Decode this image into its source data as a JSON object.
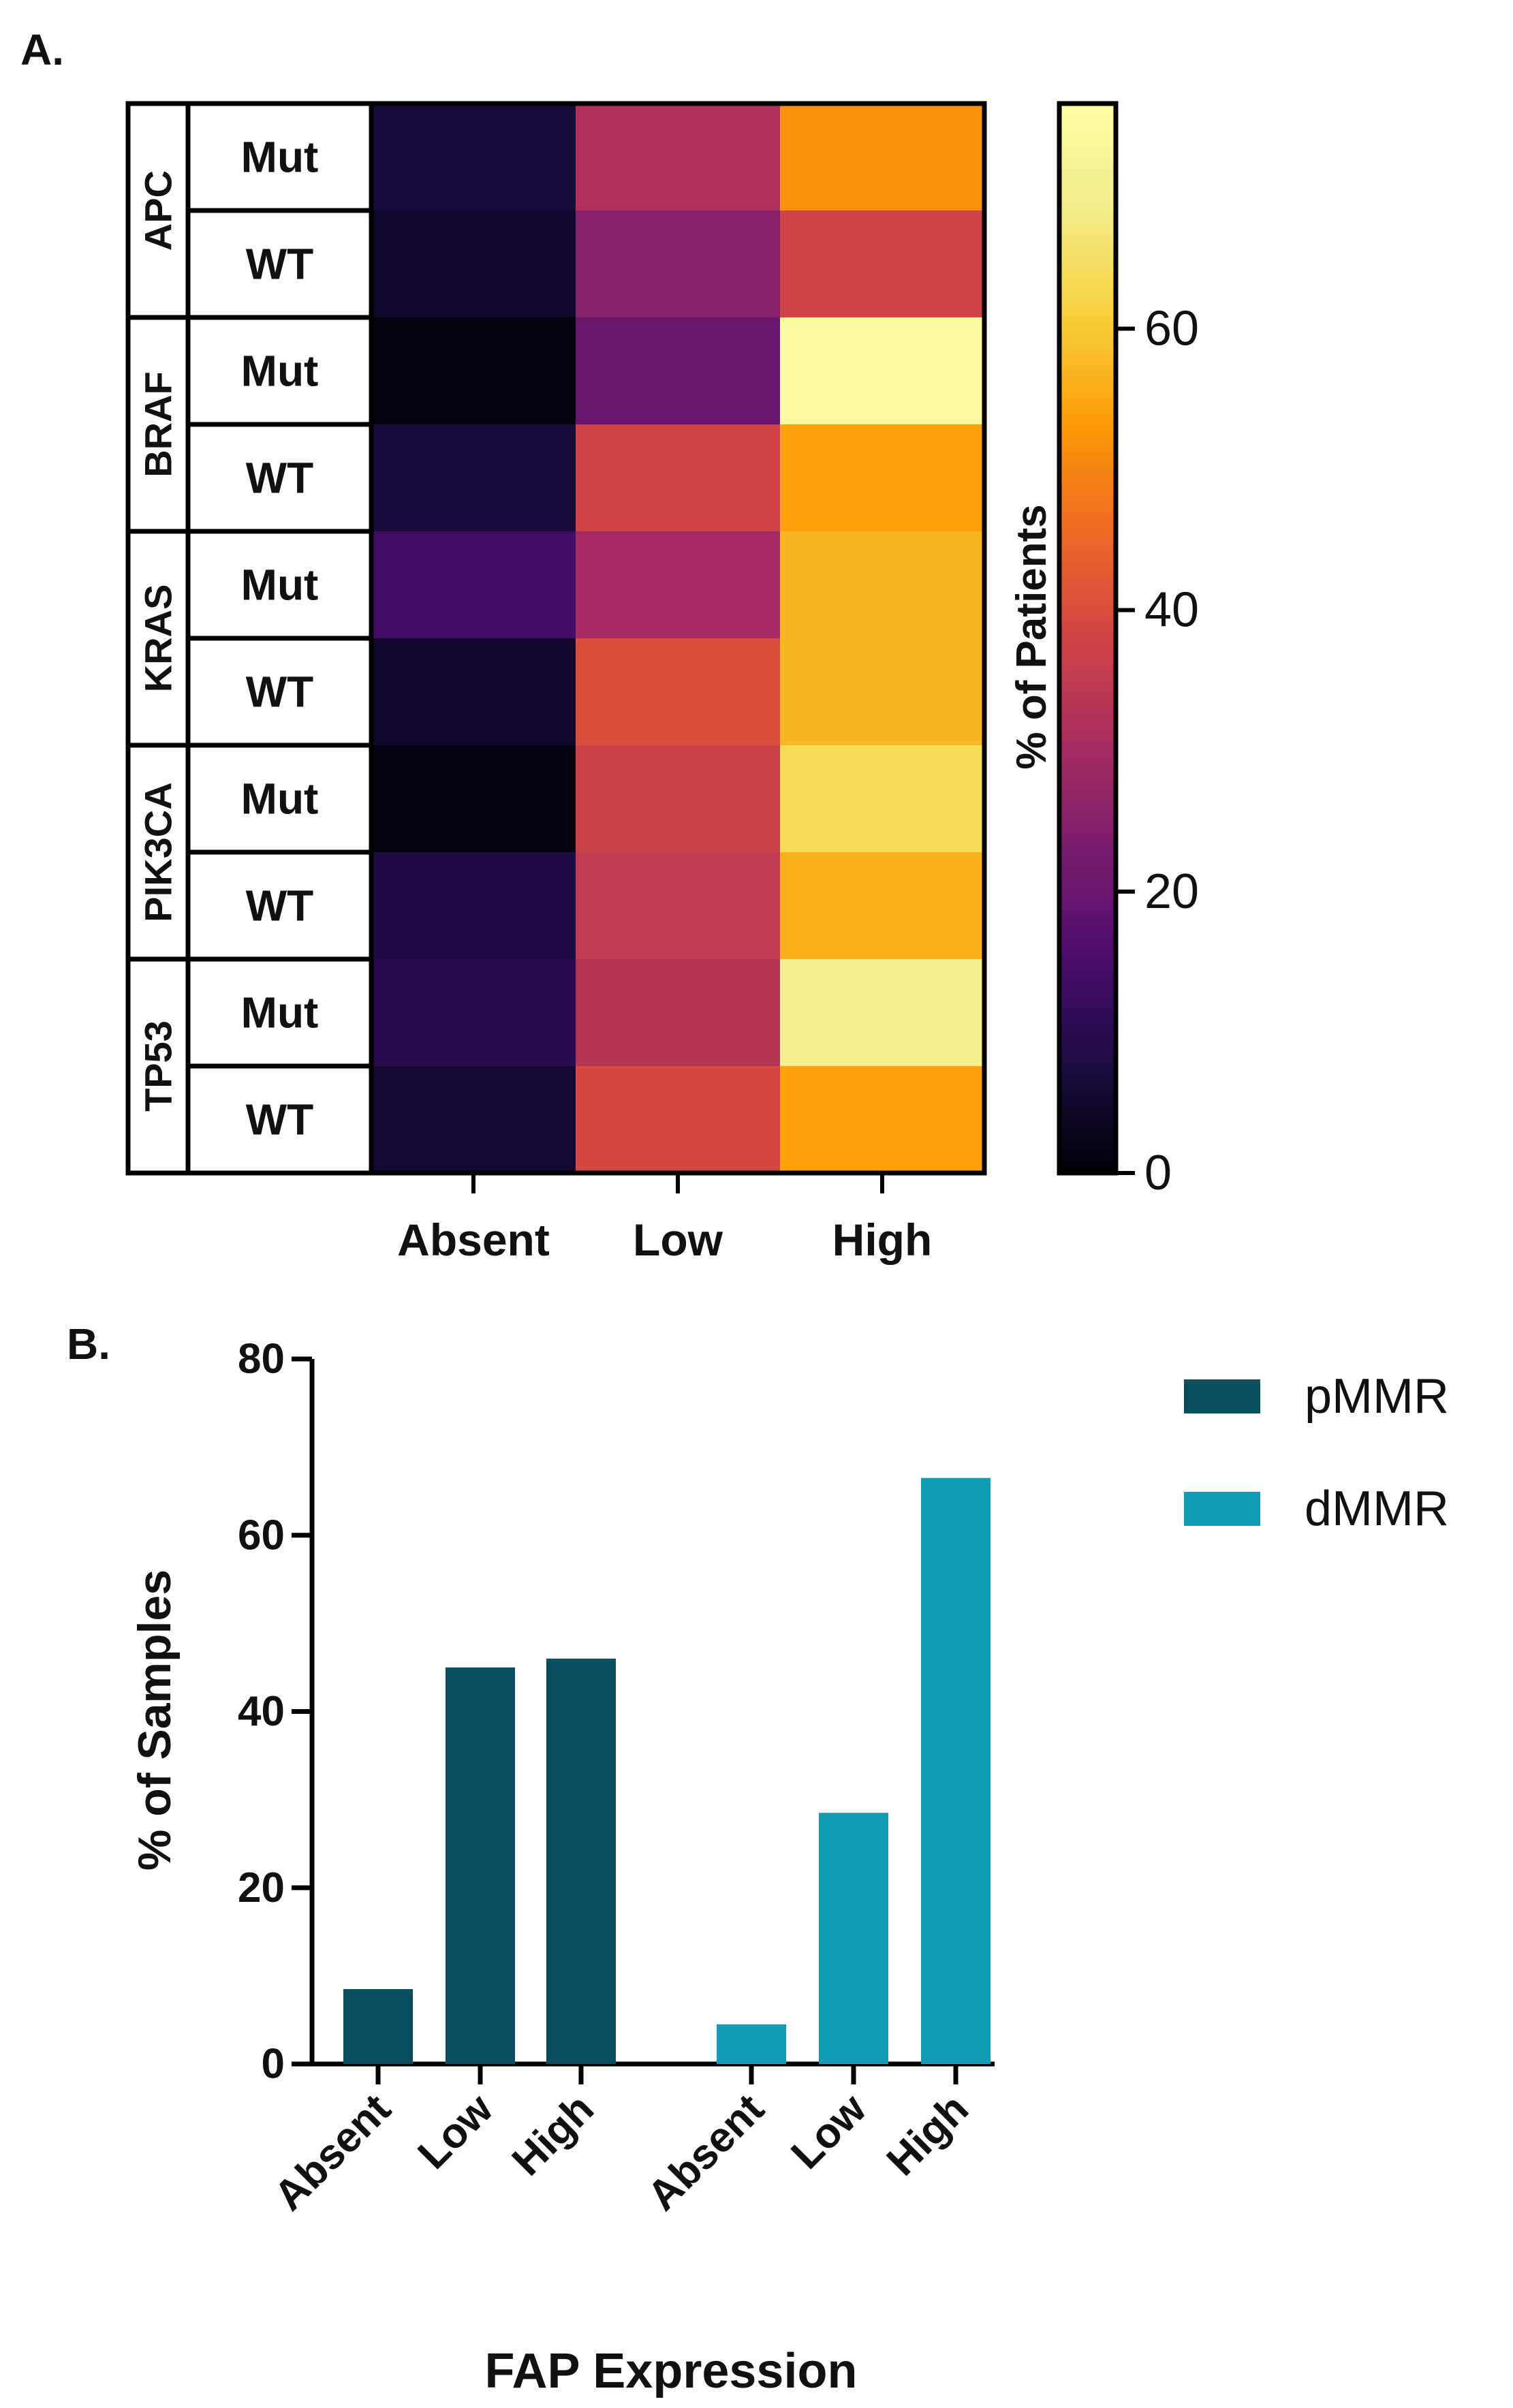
{
  "chart_data": [
    {
      "type": "heatmap",
      "panel_label": "A.",
      "genes": [
        "APC",
        "BRAF",
        "KRAS",
        "PIK3CA",
        "TP53"
      ],
      "status_labels": [
        "Mut",
        "WT"
      ],
      "rows": [
        {
          "gene": "APC",
          "status": "Mut"
        },
        {
          "gene": "APC",
          "status": "WT"
        },
        {
          "gene": "BRAF",
          "status": "Mut"
        },
        {
          "gene": "BRAF",
          "status": "WT"
        },
        {
          "gene": "KRAS",
          "status": "Mut"
        },
        {
          "gene": "KRAS",
          "status": "WT"
        },
        {
          "gene": "PIK3CA",
          "status": "Mut"
        },
        {
          "gene": "PIK3CA",
          "status": "WT"
        },
        {
          "gene": "TP53",
          "status": "Mut"
        },
        {
          "gene": "TP53",
          "status": "WT"
        }
      ],
      "columns": [
        "Absent",
        "Low",
        "High"
      ],
      "values": [
        [
          7,
          32,
          52
        ],
        [
          5,
          25,
          38
        ],
        [
          1,
          20,
          75
        ],
        [
          7,
          38,
          54
        ],
        [
          14,
          30,
          57
        ],
        [
          5,
          40,
          57
        ],
        [
          1,
          37,
          64
        ],
        [
          8,
          35,
          56
        ],
        [
          10,
          33,
          70
        ],
        [
          6,
          39,
          54
        ]
      ],
      "colorbar": {
        "label": "% of Patients",
        "range": [
          0,
          76
        ],
        "ticks": [
          0,
          20,
          40,
          60
        ],
        "colormap": "inferno"
      }
    },
    {
      "type": "bar",
      "panel_label": "B.",
      "groups": [
        "pMMR",
        "dMMR"
      ],
      "categories": [
        "Absent",
        "Low",
        "High"
      ],
      "tick_labels": [
        "Absent",
        "Low",
        "High",
        "Absent",
        "Low",
        "High"
      ],
      "series": [
        {
          "name": "pMMR",
          "color": "#0b4e5f",
          "values": [
            8.5,
            45,
            46
          ]
        },
        {
          "name": "dMMR",
          "color": "#119bb5",
          "values": [
            4.5,
            28.5,
            66.5
          ]
        }
      ],
      "xlabel": "FAP Expression",
      "ylabel": "% of Samples",
      "ylim": [
        0,
        80
      ],
      "yticks": [
        0,
        20,
        40,
        60,
        80
      ],
      "legend": "top-right"
    }
  ]
}
